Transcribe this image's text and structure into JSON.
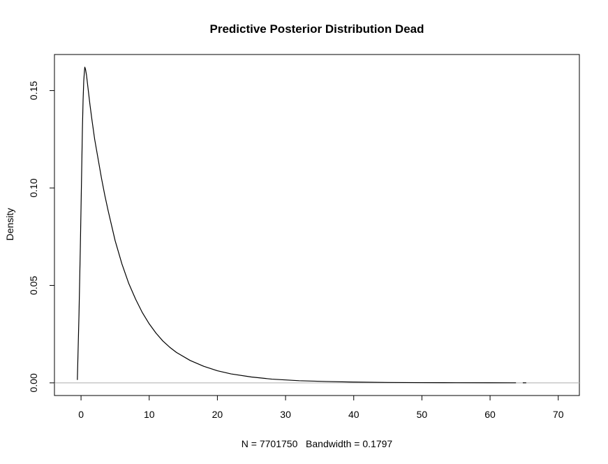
{
  "chart_data": {
    "type": "line",
    "title": "Predictive Posterior Distribution Dead",
    "xlabel": "N = 7701750   Bandwidth = 0.1797",
    "ylabel": "Density",
    "xlim": [
      -3.9,
      73.1
    ],
    "ylim": [
      -0.0065,
      0.1685
    ],
    "x_ticks": [
      {
        "value": 0,
        "label": "0"
      },
      {
        "value": 10,
        "label": "10"
      },
      {
        "value": 20,
        "label": "20"
      },
      {
        "value": 30,
        "label": "30"
      },
      {
        "value": 40,
        "label": "40"
      },
      {
        "value": 50,
        "label": "50"
      },
      {
        "value": 60,
        "label": "60"
      },
      {
        "value": 70,
        "label": "70"
      }
    ],
    "y_ticks": [
      {
        "value": 0.0,
        "label": "0.00"
      },
      {
        "value": 0.05,
        "label": "0.05"
      },
      {
        "value": 0.1,
        "label": "0.10"
      },
      {
        "value": 0.15,
        "label": "0.15"
      }
    ],
    "grid": false,
    "baseline": {
      "value": 0,
      "color": "#bebebe"
    },
    "line_color": "#000000",
    "series": [
      {
        "x": [
          -0.54,
          -0.3,
          -0.1,
          0.0,
          0.1,
          0.2,
          0.3,
          0.4,
          0.5,
          0.55,
          0.65,
          0.8,
          1.0,
          1.3,
          1.6,
          2.0,
          2.5,
          3.0,
          3.5,
          4.0,
          5.0,
          6.0,
          7.0,
          8.0,
          9.0,
          10.0,
          11.0,
          12.0,
          13.0,
          14.0,
          16.0,
          18.0,
          20.0,
          22.0,
          25.0,
          28.0,
          32.0,
          36.0,
          40.0,
          45.0,
          50.0,
          55.0,
          60.0,
          63.0,
          63.8
        ],
        "y": [
          0.0015,
          0.035,
          0.07,
          0.09,
          0.11,
          0.13,
          0.145,
          0.155,
          0.16,
          0.162,
          0.161,
          0.158,
          0.152,
          0.143,
          0.135,
          0.125,
          0.115,
          0.105,
          0.096,
          0.088,
          0.073,
          0.061,
          0.051,
          0.043,
          0.036,
          0.0303,
          0.0255,
          0.0215,
          0.0183,
          0.0156,
          0.0115,
          0.0085,
          0.0062,
          0.0046,
          0.003,
          0.0019,
          0.0011,
          0.0007,
          0.0004,
          0.0002,
          0.00012,
          7e-05,
          4e-05,
          3e-05,
          2e-05
        ]
      },
      {
        "x": [
          64.8,
          65.3
        ],
        "y": [
          2e-05,
          2e-05
        ]
      }
    ]
  }
}
